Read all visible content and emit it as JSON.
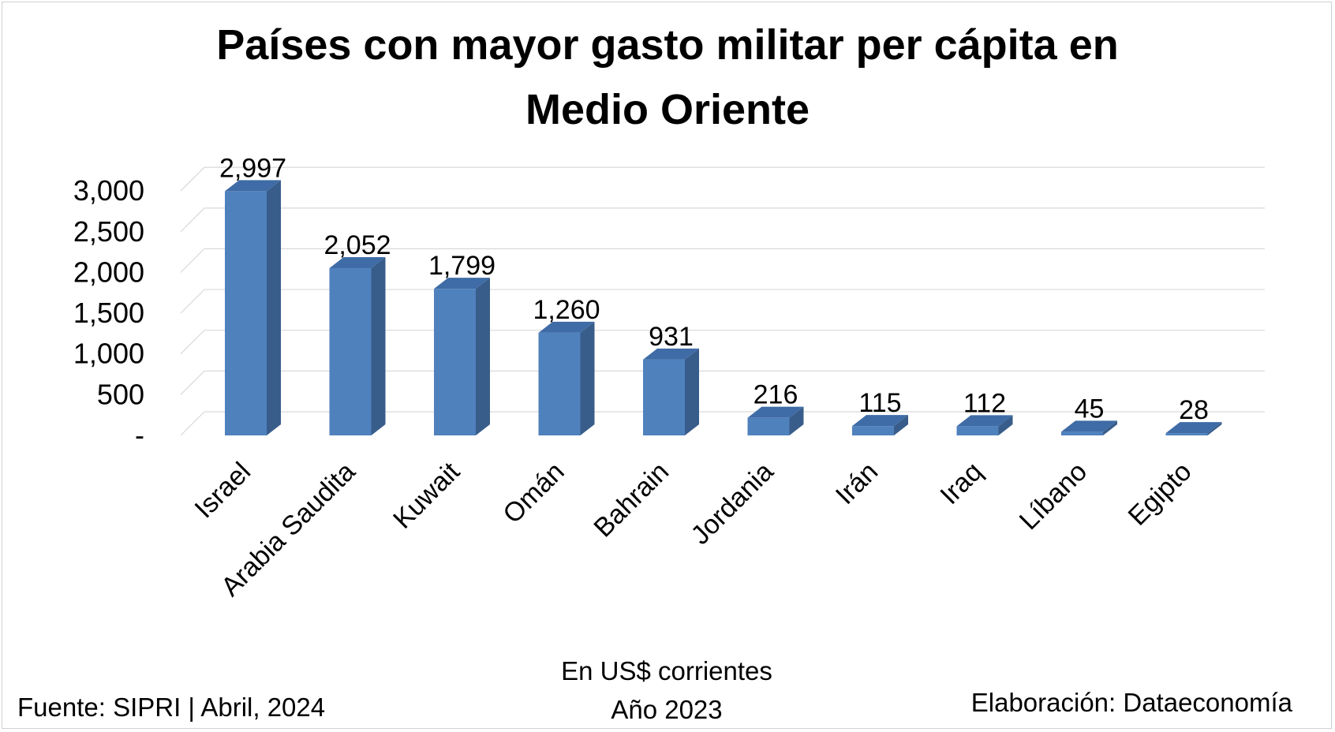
{
  "chart_data": {
    "type": "bar",
    "title_lines": [
      "Países con mayor gasto militar per cápita en",
      "Medio Oriente"
    ],
    "categories": [
      "Israel",
      "Arabia Saudita",
      "Kuwait",
      "Omán",
      "Bahrain",
      "Jordania",
      "Irán",
      "Iraq",
      "Líbano",
      "Egipto"
    ],
    "values": [
      2997,
      2052,
      1799,
      1260,
      931,
      216,
      115,
      112,
      45,
      28
    ],
    "data_labels": [
      "2,997",
      "2,052",
      "1,799",
      "1,260",
      "931",
      "216",
      "115",
      "112",
      "45",
      "28"
    ],
    "y_ticks": [
      0,
      500,
      1000,
      1500,
      2000,
      2500,
      3000
    ],
    "y_tick_labels": [
      "-",
      "500",
      "1,000",
      "1,500",
      "2,000",
      "2,500",
      "3,000"
    ],
    "ylim": [
      0,
      3000
    ],
    "grid": true,
    "legend": "none",
    "three_d": true,
    "colors": {
      "bar_front": "#4f81bd",
      "bar_side": "#385d8a",
      "bar_top": "#3f6ca6"
    },
    "subtitle_lines": [
      "En US$ corrientes",
      "Año 2023"
    ],
    "source": "Fuente: SIPRI | Abril, 2024",
    "credit": "Elaboración: Dataeconomía"
  }
}
